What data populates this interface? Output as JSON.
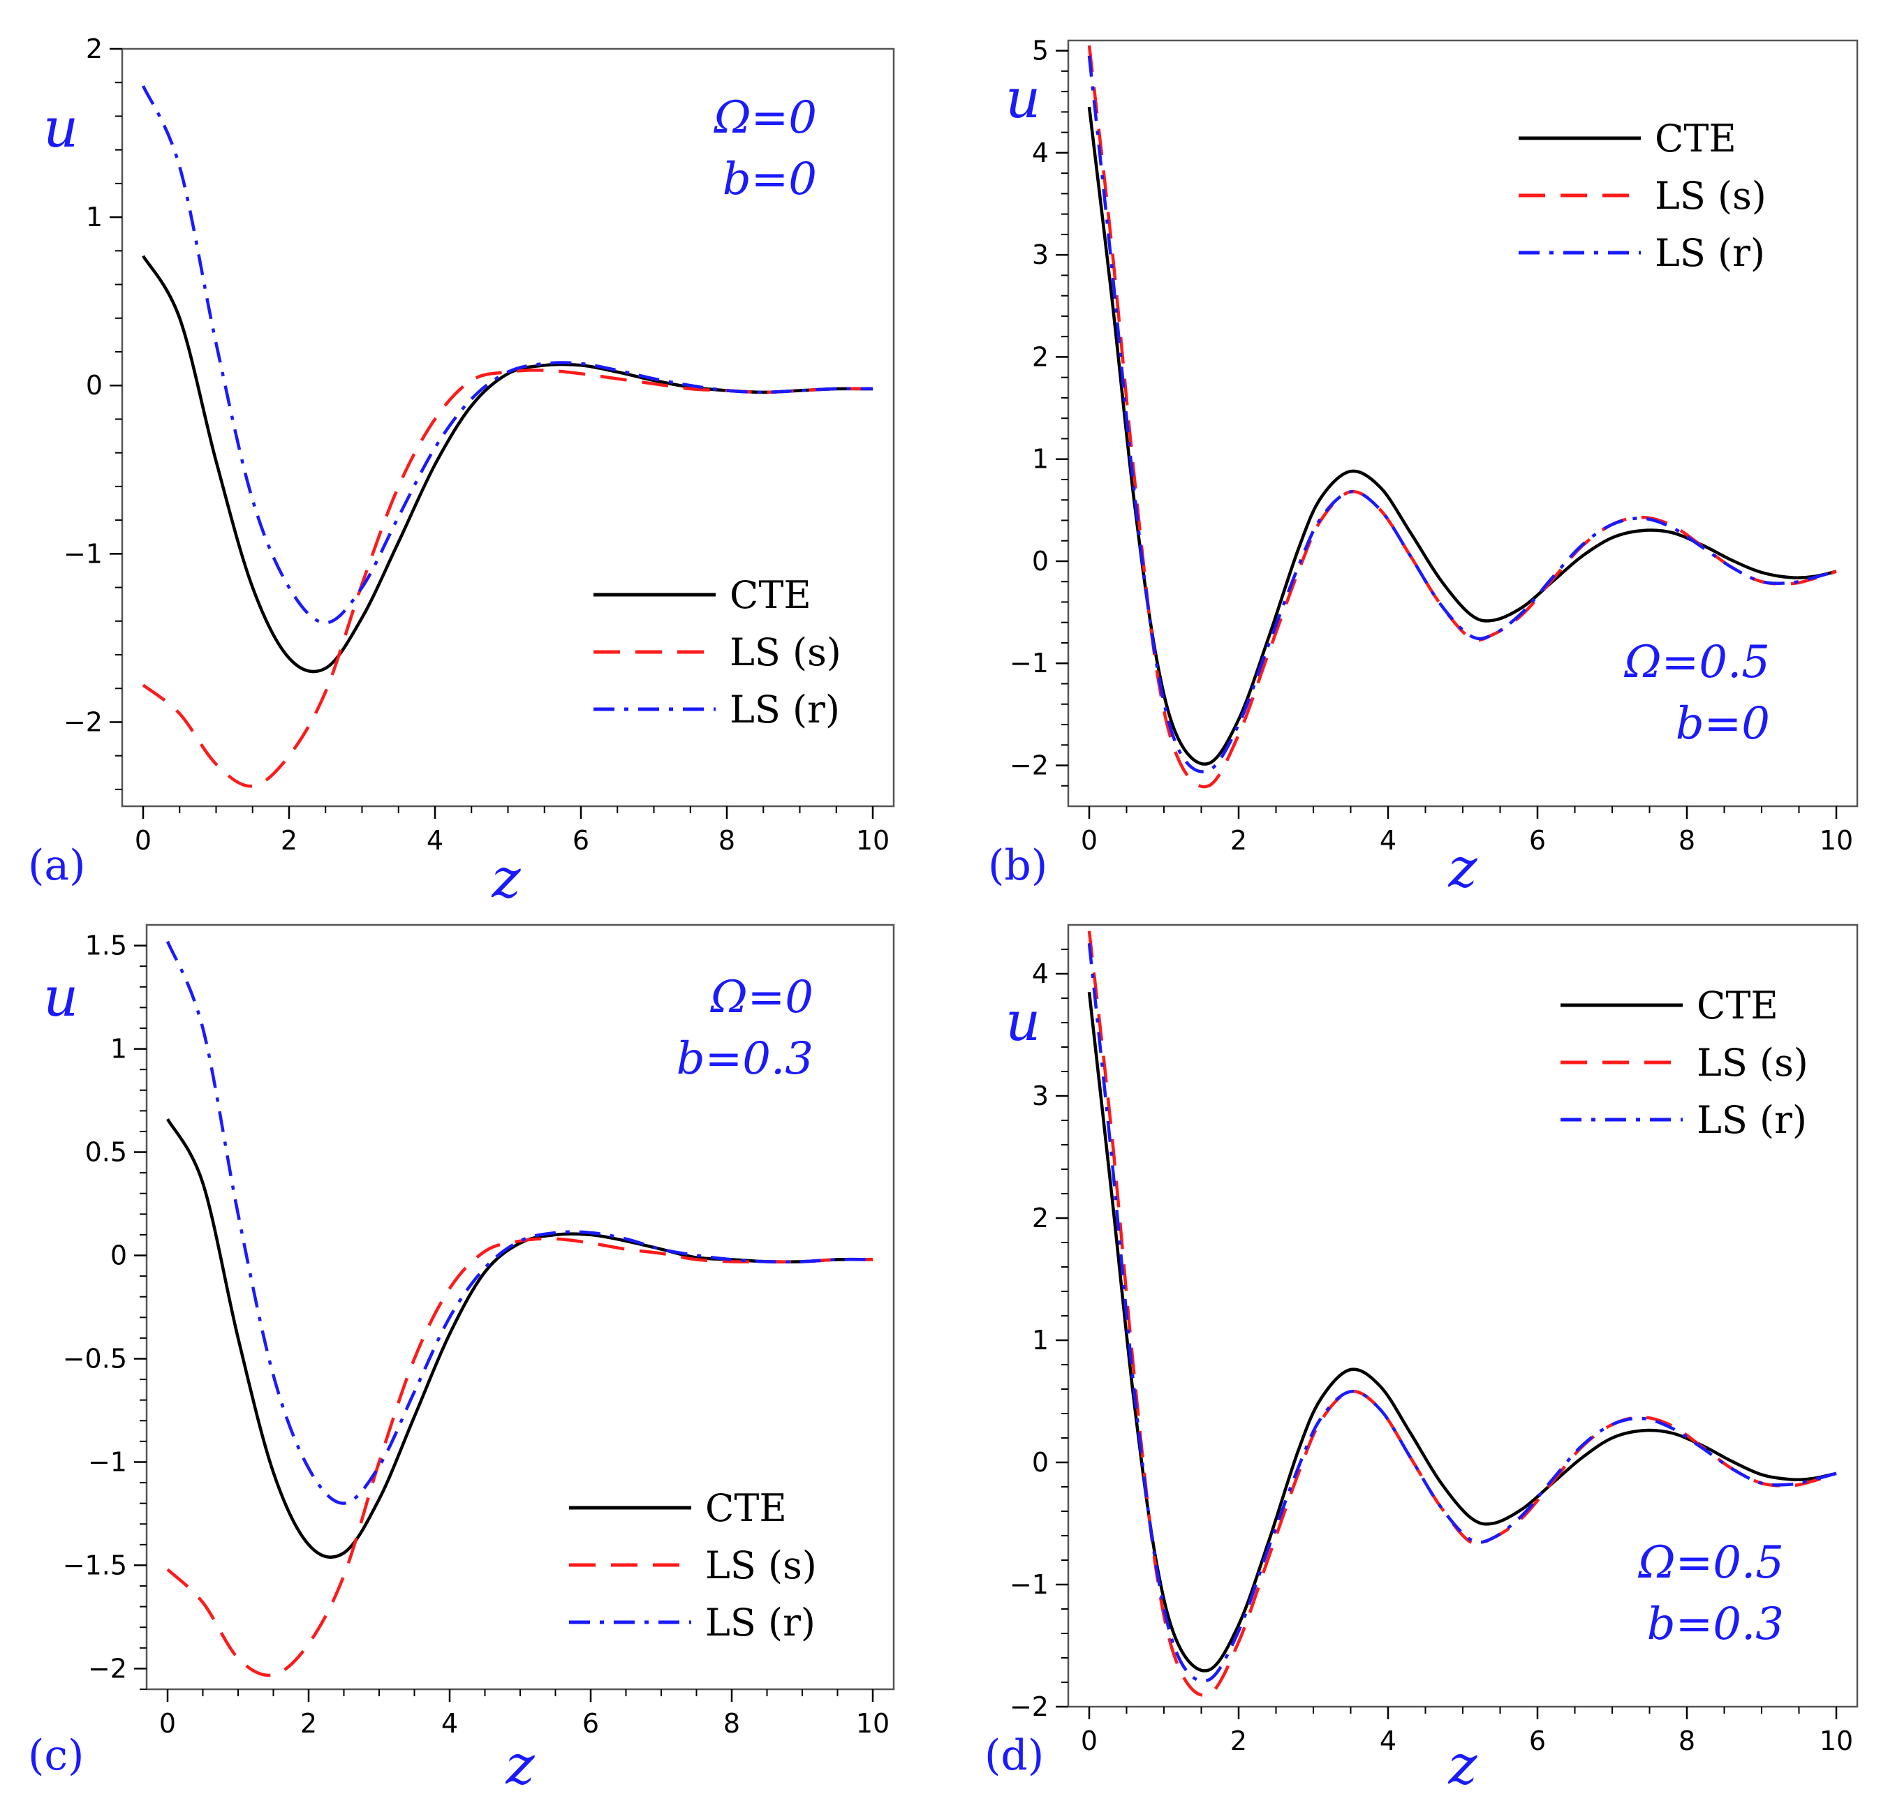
{
  "colors": {
    "cte": "#000000",
    "ls_s": "#ff1a1a",
    "ls_r": "#1a1aff",
    "text_blue": "#1a1aff"
  },
  "chart_data": [
    {
      "type": "line",
      "panel_label": "(a)",
      "xlabel": "z",
      "ylabel": "u",
      "xlim": [
        0,
        10
      ],
      "ylim": [
        -2.5,
        2
      ],
      "xticks": [
        "0",
        "2",
        "4",
        "6",
        "8",
        "10"
      ],
      "yticks": [
        "2",
        "1",
        "0",
        "−1",
        "−2"
      ],
      "ytick_values": [
        2,
        1,
        0,
        -1,
        -2
      ],
      "annotation": [
        "Ω=0",
        "b=0"
      ],
      "legend_position": "bottom-right",
      "x": [
        0,
        0.5,
        1,
        1.5,
        2,
        2.5,
        3,
        3.5,
        4,
        4.5,
        5,
        5.5,
        6,
        6.5,
        7,
        7.5,
        8,
        8.5,
        9,
        9.5,
        10
      ],
      "series": [
        {
          "name": "CTE",
          "style": "solid",
          "values": [
            0.77,
            0.4,
            -0.45,
            -1.2,
            -1.62,
            -1.68,
            -1.38,
            -0.93,
            -0.47,
            -0.12,
            0.07,
            0.12,
            0.12,
            0.08,
            0.03,
            -0.01,
            -0.03,
            -0.04,
            -0.03,
            -0.02,
            -0.02
          ]
        },
        {
          "name": "LS (s)",
          "style": "dashed",
          "values": [
            -1.78,
            -1.95,
            -2.25,
            -2.38,
            -2.2,
            -1.82,
            -1.18,
            -0.6,
            -0.2,
            0.03,
            0.08,
            0.09,
            0.07,
            0.04,
            0.01,
            -0.02,
            -0.03,
            -0.04,
            -0.03,
            -0.02,
            -0.02
          ]
        },
        {
          "name": "LS (r)",
          "style": "dashdot",
          "values": [
            1.78,
            1.3,
            0.25,
            -0.68,
            -1.2,
            -1.41,
            -1.2,
            -0.78,
            -0.37,
            -0.08,
            0.08,
            0.13,
            0.13,
            0.09,
            0.04,
            0,
            -0.03,
            -0.04,
            -0.03,
            -0.02,
            -0.02
          ]
        }
      ]
    },
    {
      "type": "line",
      "panel_label": "(b)",
      "xlabel": "z",
      "ylabel": "u",
      "xlim": [
        0,
        10
      ],
      "ylim": [
        -2.4,
        5.1
      ],
      "xticks": [
        "0",
        "2",
        "4",
        "6",
        "8",
        "10"
      ],
      "yticks": [
        "5",
        "4",
        "3",
        "2",
        "1",
        "0",
        "−1",
        "−2"
      ],
      "ytick_values": [
        5,
        4,
        3,
        2,
        1,
        0,
        -1,
        -2
      ],
      "annotation": [
        "Ω=0.5",
        "b=0"
      ],
      "legend_position": "top-right",
      "x": [
        0,
        0.3,
        0.6,
        0.9,
        1.2,
        1.6,
        2,
        2.4,
        2.8,
        3.1,
        3.5,
        3.9,
        4.3,
        4.7,
        5.1,
        5.4,
        5.8,
        6.2,
        6.6,
        7,
        7.4,
        7.8,
        8.2,
        8.6,
        9,
        9.4,
        9.7,
        10
      ],
      "series": [
        {
          "name": "CTE",
          "style": "solid",
          "values": [
            4.45,
            2.6,
            0.6,
            -0.95,
            -1.75,
            -1.98,
            -1.55,
            -0.75,
            0.12,
            0.62,
            0.88,
            0.72,
            0.28,
            -0.18,
            -0.52,
            -0.58,
            -0.45,
            -0.2,
            0.05,
            0.23,
            0.3,
            0.28,
            0.16,
            0.01,
            -0.11,
            -0.16,
            -0.15,
            -0.1
          ]
        },
        {
          "name": "LS (s)",
          "style": "dashed",
          "values": [
            5.05,
            3.1,
            0.85,
            -1.05,
            -1.95,
            -2.2,
            -1.7,
            -0.9,
            -0.1,
            0.4,
            0.68,
            0.5,
            0.05,
            -0.42,
            -0.75,
            -0.72,
            -0.52,
            -0.18,
            0.15,
            0.36,
            0.43,
            0.35,
            0.15,
            -0.06,
            -0.2,
            -0.22,
            -0.17,
            -0.1
          ]
        },
        {
          "name": "LS (r)",
          "style": "dashdot",
          "values": [
            4.95,
            2.9,
            0.7,
            -1.0,
            -1.85,
            -2.05,
            -1.6,
            -0.82,
            -0.05,
            0.42,
            0.68,
            0.5,
            0.05,
            -0.42,
            -0.73,
            -0.72,
            -0.5,
            -0.16,
            0.16,
            0.36,
            0.42,
            0.33,
            0.14,
            -0.06,
            -0.2,
            -0.21,
            -0.16,
            -0.1
          ]
        }
      ]
    },
    {
      "type": "line",
      "panel_label": "(c)",
      "xlabel": "z",
      "ylabel": "u",
      "xlim": [
        0,
        10
      ],
      "ylim": [
        -2.1,
        1.6
      ],
      "xticks": [
        "0",
        "2",
        "4",
        "6",
        "8",
        "10"
      ],
      "yticks": [
        "1.5",
        "1",
        "0.5",
        "0",
        "−0.5",
        "−1",
        "−1.5",
        "−2"
      ],
      "ytick_values": [
        1.5,
        1,
        0.5,
        0,
        -0.5,
        -1,
        -1.5,
        -2
      ],
      "annotation": [
        "Ω=0",
        "b=0.3"
      ],
      "legend_position": "bottom-right",
      "x": [
        0,
        0.5,
        1,
        1.5,
        2,
        2.5,
        3,
        3.5,
        4,
        4.5,
        5,
        5.5,
        6,
        6.5,
        7,
        7.5,
        8,
        8.5,
        9,
        9.5,
        10
      ],
      "series": [
        {
          "name": "CTE",
          "style": "solid",
          "values": [
            0.66,
            0.35,
            -0.4,
            -1.05,
            -1.4,
            -1.44,
            -1.18,
            -0.78,
            -0.38,
            -0.08,
            0.06,
            0.1,
            0.1,
            0.07,
            0.03,
            -0.01,
            -0.02,
            -0.03,
            -0.03,
            -0.02,
            -0.02
          ]
        },
        {
          "name": "LS (s)",
          "style": "dashed",
          "values": [
            -1.52,
            -1.68,
            -1.95,
            -2.03,
            -1.88,
            -1.55,
            -1.0,
            -0.5,
            -0.16,
            0.02,
            0.07,
            0.08,
            0.06,
            0.03,
            0.01,
            -0.02,
            -0.03,
            -0.03,
            -0.03,
            -0.02,
            -0.02
          ]
        },
        {
          "name": "LS (r)",
          "style": "dashdot",
          "values": [
            1.52,
            1.1,
            0.2,
            -0.58,
            -1.03,
            -1.2,
            -1.02,
            -0.66,
            -0.3,
            -0.06,
            0.07,
            0.11,
            0.11,
            0.08,
            0.03,
            0,
            -0.02,
            -0.03,
            -0.03,
            -0.02,
            -0.02
          ]
        }
      ]
    },
    {
      "type": "line",
      "panel_label": "(d)",
      "xlabel": "z",
      "ylabel": "u",
      "xlim": [
        0,
        10
      ],
      "ylim": [
        -2,
        4.4
      ],
      "xticks": [
        "0",
        "2",
        "4",
        "6",
        "8",
        "10"
      ],
      "yticks": [
        "4",
        "3",
        "2",
        "1",
        "0",
        "−1",
        "−2"
      ],
      "ytick_values": [
        4,
        3,
        2,
        1,
        0,
        -1,
        -2
      ],
      "annotation": [
        "Ω=0.5",
        "b=0.3"
      ],
      "legend_position": "top-right",
      "x": [
        0,
        0.3,
        0.6,
        0.9,
        1.2,
        1.6,
        2,
        2.4,
        2.8,
        3.1,
        3.5,
        3.9,
        4.3,
        4.7,
        5.1,
        5.4,
        5.8,
        6.2,
        6.6,
        7,
        7.4,
        7.8,
        8.2,
        8.6,
        9,
        9.4,
        9.7,
        10
      ],
      "series": [
        {
          "name": "CTE",
          "style": "solid",
          "values": [
            3.85,
            2.2,
            0.5,
            -0.82,
            -1.5,
            -1.7,
            -1.33,
            -0.65,
            0.1,
            0.52,
            0.76,
            0.62,
            0.24,
            -0.16,
            -0.45,
            -0.5,
            -0.38,
            -0.17,
            0.04,
            0.2,
            0.26,
            0.24,
            0.14,
            0.01,
            -0.1,
            -0.14,
            -0.13,
            -0.09
          ]
        },
        {
          "name": "LS (s)",
          "style": "dashed",
          "values": [
            4.35,
            2.7,
            0.73,
            -0.9,
            -1.68,
            -1.9,
            -1.47,
            -0.78,
            -0.09,
            0.34,
            0.58,
            0.43,
            0.04,
            -0.36,
            -0.65,
            -0.62,
            -0.45,
            -0.16,
            0.13,
            0.31,
            0.37,
            0.3,
            0.13,
            -0.05,
            -0.17,
            -0.19,
            -0.15,
            -0.09
          ]
        },
        {
          "name": "LS (r)",
          "style": "dashdot",
          "values": [
            4.25,
            2.5,
            0.6,
            -0.86,
            -1.6,
            -1.78,
            -1.38,
            -0.7,
            -0.04,
            0.36,
            0.58,
            0.43,
            0.04,
            -0.36,
            -0.63,
            -0.62,
            -0.43,
            -0.14,
            0.14,
            0.31,
            0.36,
            0.28,
            0.12,
            -0.05,
            -0.17,
            -0.18,
            -0.14,
            -0.09
          ]
        }
      ]
    }
  ]
}
